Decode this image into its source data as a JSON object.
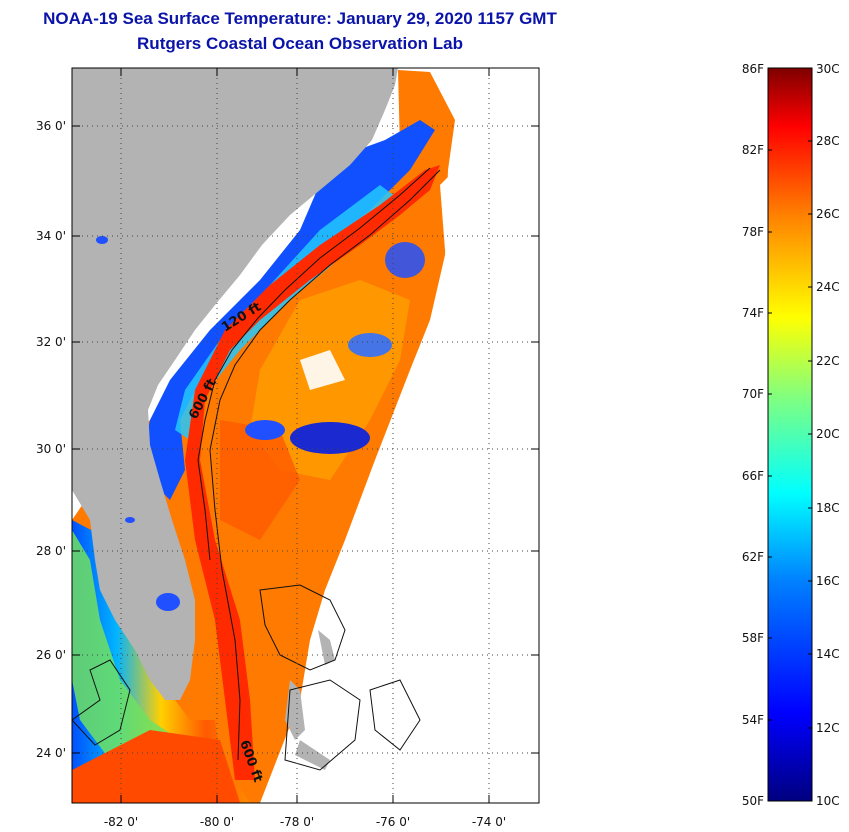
{
  "title": {
    "line1": "NOAA-19 Sea Surface Temperature:  January 29, 2020 1157 GMT",
    "line2": "Rutgers Coastal Ocean Observation Lab"
  },
  "map": {
    "lat_labels": [
      "36 0'",
      "34 0'",
      "32 0'",
      "30 0'",
      "28 0'",
      "26 0'",
      "24 0'"
    ],
    "lon_labels": [
      "-82 0'",
      "-80 0'",
      "-78 0'",
      "-76 0'",
      "-74 0'"
    ],
    "contour_labels": [
      "120 ft",
      "600 ft",
      "600 ft"
    ],
    "colors": {
      "land": "#b3b3b3",
      "nodata": "#ffffff",
      "cold": "#0000a0",
      "warm": "#e63a00"
    }
  },
  "colorbar": {
    "fahrenheit": [
      "86F",
      "82F",
      "78F",
      "74F",
      "70F",
      "66F",
      "62F",
      "58F",
      "54F",
      "50F"
    ],
    "celsius": [
      "30C",
      "28C",
      "26C",
      "24C",
      "22C",
      "20C",
      "18C",
      "16C",
      "14C",
      "12C",
      "10C"
    ],
    "stops": [
      "#00007f",
      "#0000ff",
      "#0080ff",
      "#00ffff",
      "#80ff80",
      "#ffff00",
      "#ff8000",
      "#ff0000",
      "#7f0000"
    ]
  }
}
